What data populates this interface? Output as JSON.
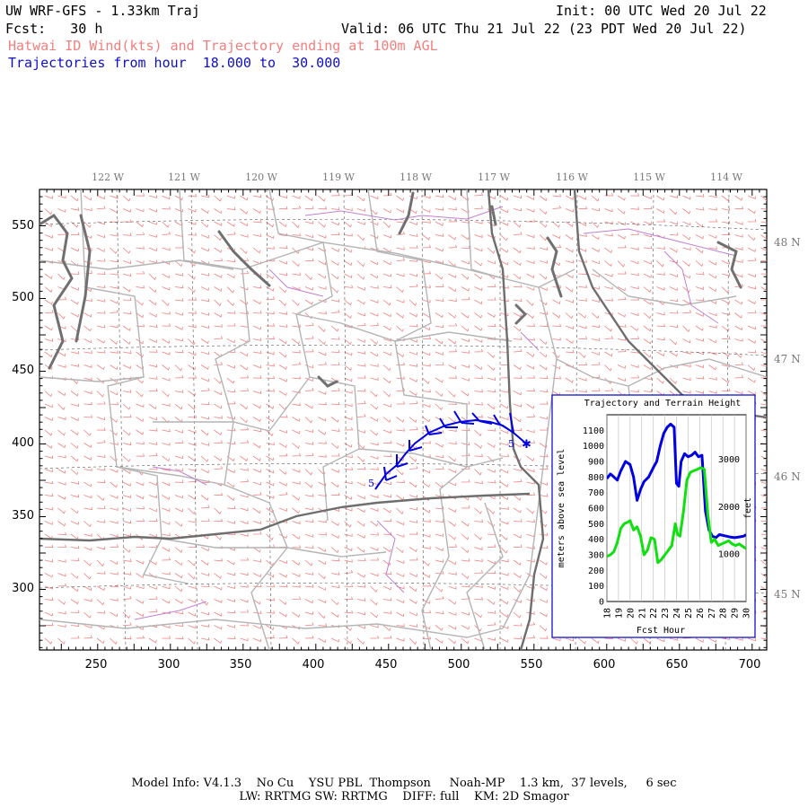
{
  "header": {
    "title": "UW WRF-GFS - 1.33km Traj",
    "init": "Init: 00 UTC Wed 20 Jul 22",
    "fcst_label": "Fcst:",
    "fcst_value": "30 h",
    "valid": "Valid: 06 UTC Thu 21 Jul 22 (23 PDT Wed 20 Jul 22)",
    "field_desc": "Hatwai ID Wind(kts) and Trajectory ending at 100m AGL",
    "traj_label": "Trajectories from hour",
    "traj_from": "18.000",
    "traj_to_word": "to",
    "traj_to": "30.000"
  },
  "map": {
    "top_lon_labels": [
      "122 W",
      "121 W",
      "120 W",
      "119 W",
      "118 W",
      "117 W",
      "116 W",
      "115 W",
      "114 W"
    ],
    "right_lat_labels": [
      "48 N",
      "47 N",
      "46 N",
      "45 N"
    ],
    "left_y_ticks": [
      "550",
      "500",
      "450",
      "400",
      "350",
      "300"
    ],
    "bottom_x_ticks": [
      "250",
      "300",
      "350",
      "400",
      "450",
      "500",
      "550",
      "600",
      "650",
      "700"
    ],
    "trajectory_start_label": "5",
    "trajectory_end_label": "5",
    "colors": {
      "wind_barbs": "#f08080",
      "counties": "#b4b4b4",
      "states": "#6e6e6e",
      "water": "#707070",
      "boundaries_purple": "#c080d0",
      "trajectory": "#0000e0"
    }
  },
  "inset": {
    "title": "Trajectory and Terrain Height",
    "y_left_label": "meters above sea level",
    "y_right_label": "feet",
    "x_label": "Fcst Hour",
    "chart_data": {
      "type": "line",
      "title": "Trajectory and Terrain Height",
      "xlabel": "Fcst Hour",
      "ylabel": "meters above sea level",
      "y2label": "feet",
      "xlim": [
        18,
        30
      ],
      "ylim": [
        0,
        1200
      ],
      "x_ticks": [
        "18",
        "19",
        "20",
        "21",
        "22",
        "23",
        "24",
        "25",
        "26",
        "27",
        "28",
        "29",
        "30"
      ],
      "y_ticks": [
        "0",
        "100",
        "200",
        "300",
        "400",
        "500",
        "600",
        "700",
        "800",
        "900",
        "1000",
        "1100"
      ],
      "y2_ticks": [
        "1000",
        "2000",
        "3000"
      ],
      "series": [
        {
          "color": "#0000e0",
          "x": [
            18,
            18.3,
            18.6,
            18.9,
            19.2,
            19.6,
            20,
            20.3,
            20.6,
            20.9,
            21.2,
            21.6,
            22,
            22.3,
            22.6,
            22.9,
            23.2,
            23.5,
            23.8,
            24,
            24.2,
            24.4,
            24.7,
            25,
            25.3,
            25.6,
            25.9,
            26.2,
            26.5,
            26.8,
            27.1,
            27.4,
            27.7,
            28,
            28.3,
            28.6,
            29,
            29.4,
            29.8,
            30
          ],
          "values": [
            790,
            820,
            800,
            780,
            840,
            900,
            880,
            800,
            650,
            720,
            770,
            800,
            860,
            900,
            1000,
            1080,
            1120,
            1140,
            1120,
            760,
            740,
            900,
            950,
            930,
            940,
            960,
            930,
            940,
            580,
            460,
            420,
            410,
            430,
            425,
            420,
            415,
            410,
            415,
            420,
            430
          ]
        },
        {
          "color": "#10e010",
          "x": [
            18,
            18.3,
            18.6,
            18.9,
            19.2,
            19.5,
            19.8,
            20,
            20.3,
            20.6,
            20.9,
            21.2,
            21.5,
            21.8,
            22.1,
            22.4,
            22.7,
            23,
            23.3,
            23.6,
            23.9,
            24.1,
            24.3,
            24.6,
            24.9,
            25.2,
            25.5,
            25.8,
            26.1,
            26.4,
            26.7,
            27,
            27.3,
            27.6,
            27.9,
            28.2,
            28.5,
            28.8,
            29.1,
            29.4,
            29.7,
            30
          ],
          "values": [
            290,
            300,
            320,
            380,
            470,
            500,
            510,
            520,
            460,
            480,
            420,
            300,
            330,
            410,
            400,
            250,
            270,
            300,
            330,
            360,
            500,
            430,
            420,
            580,
            780,
            830,
            840,
            850,
            860,
            850,
            560,
            380,
            400,
            360,
            370,
            380,
            390,
            370,
            360,
            370,
            355,
            340
          ]
        }
      ]
    }
  },
  "footer": {
    "line1": "Model Info: V4.1.3    No Cu    YSU PBL  Thompson     Noah-MP    1.3 km,  37 levels,     6 sec",
    "line2": "LW: RRTMG SW: RRTMG    DIFF: full    KM: 2D Smagor"
  }
}
